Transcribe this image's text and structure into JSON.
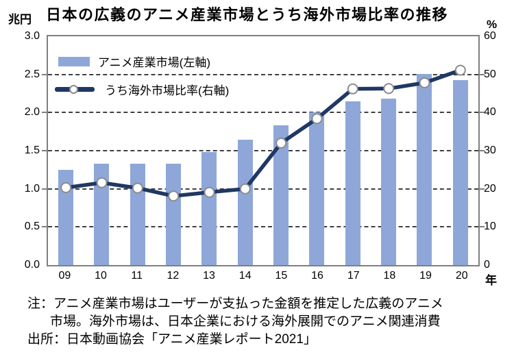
{
  "chart_data": {
    "type": "bar+line",
    "title": "日本の広義のアニメ産業市場とうち海外市場比率の推移",
    "categories": [
      "09",
      "10",
      "11",
      "12",
      "13",
      "14",
      "15",
      "16",
      "17",
      "18",
      "19",
      "20"
    ],
    "series": [
      {
        "name": "アニメ産業市場(左軸)",
        "type": "bar",
        "axis": "left",
        "values": [
          1.25,
          1.33,
          1.33,
          1.33,
          1.48,
          1.64,
          1.83,
          2.0,
          2.15,
          2.18,
          2.51,
          2.43
        ]
      },
      {
        "name": "うち海外市場比率(右軸)",
        "type": "line",
        "axis": "right",
        "values": [
          20.3,
          21.6,
          20.2,
          18.1,
          19.1,
          20.0,
          32.0,
          38.4,
          46.2,
          46.3,
          47.8,
          51.1
        ]
      }
    ],
    "left_axis": {
      "unit": "兆円",
      "range": [
        0,
        3
      ],
      "ticks": [
        "3.0",
        "2.5",
        "2.0",
        "1.5",
        "1.0",
        "0.5",
        "0.0"
      ]
    },
    "right_axis": {
      "unit": "%",
      "range": [
        0,
        60
      ],
      "ticks": [
        "60",
        "50",
        "40",
        "30",
        "20",
        "10",
        "0"
      ]
    },
    "x_axis": {
      "unit": "年"
    },
    "grid": true,
    "legend_position": "top-left-inside",
    "colors": {
      "bar": "#8EA7D8",
      "line": "#1F3864",
      "marker_fill": "#FFFFFF",
      "marker_stroke": "#8C8C8C",
      "frame": "#7F7F7F",
      "gridline": "#3F3F3F"
    }
  },
  "notes": {
    "line1": "注：アニメ産業市場はユーザーが支払った金額を推定した広義のアニメ",
    "line2": "市場。海外市場は、日本企業における海外展開でのアニメ関連消費",
    "line3": "出所：日本動画協会「アニメ産業レポート2021」"
  }
}
